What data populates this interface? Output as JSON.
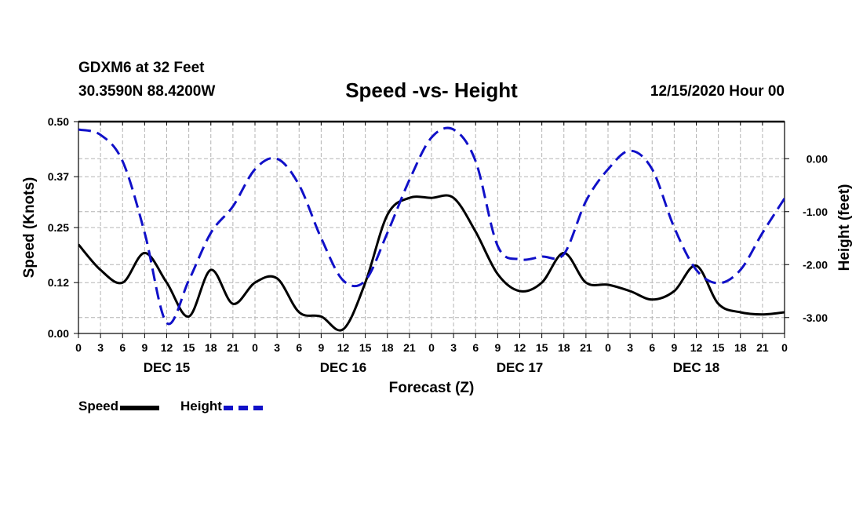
{
  "header": {
    "station": "GDXM6 at 32 Feet",
    "coordinates": "30.3590N 88.4200W",
    "title": "Speed -vs- Height",
    "date_hour": "12/15/2020 Hour 00"
  },
  "legend": {
    "speed_label": "Speed",
    "height_label": "Height"
  },
  "colors": {
    "speed": "#000000",
    "height": "#1010c8",
    "grid": "#b4b4b4"
  },
  "chart_data": {
    "type": "line",
    "title": "Speed -vs- Height",
    "xlabel": "Forecast (Z)",
    "ylabel": "Speed (Knots)",
    "y2label": "Height (feet)",
    "xlim": [
      0,
      96
    ],
    "ylim": [
      0,
      0.5
    ],
    "y2lim": [
      -3.3,
      0.7
    ],
    "x_ticks": [
      0,
      3,
      6,
      9,
      12,
      15,
      18,
      21,
      24,
      27,
      30,
      33,
      36,
      39,
      42,
      45,
      48,
      51,
      54,
      57,
      60,
      63,
      66,
      69,
      72,
      75,
      78,
      81,
      84,
      87,
      90,
      93,
      96
    ],
    "x_tick_labels": [
      "0",
      "3",
      "6",
      "9",
      "12",
      "15",
      "18",
      "21",
      "0",
      "3",
      "6",
      "9",
      "12",
      "15",
      "18",
      "21",
      "0",
      "3",
      "6",
      "9",
      "12",
      "15",
      "18",
      "21",
      "0",
      "3",
      "6",
      "9",
      "12",
      "15",
      "18",
      "21",
      "0"
    ],
    "day_labels": [
      {
        "x": 12,
        "label": "DEC 15"
      },
      {
        "x": 36,
        "label": "DEC 16"
      },
      {
        "x": 60,
        "label": "DEC 17"
      },
      {
        "x": 84,
        "label": "DEC 18"
      }
    ],
    "y_ticks": [
      0.0,
      0.12,
      0.25,
      0.37,
      0.5
    ],
    "y_tick_labels": [
      "0.00",
      "0.12",
      "0.25",
      "0.37",
      "0.50"
    ],
    "y2_ticks": [
      0.0,
      -1.0,
      -2.0,
      -3.0
    ],
    "y2_tick_labels": [
      "0.00",
      "-1.00",
      "-2.00",
      "-3.00"
    ],
    "grid": true,
    "legend_position": "bottom-left",
    "series": [
      {
        "name": "Speed",
        "axis": "left",
        "style": "solid",
        "x": [
          0,
          3,
          6,
          9,
          12,
          15,
          18,
          21,
          24,
          27,
          30,
          33,
          36,
          39,
          42,
          45,
          48,
          51,
          54,
          57,
          60,
          63,
          66,
          69,
          72,
          75,
          78,
          81,
          84,
          87,
          90,
          93,
          96
        ],
        "values": [
          0.21,
          0.15,
          0.12,
          0.19,
          0.12,
          0.04,
          0.15,
          0.07,
          0.12,
          0.13,
          0.05,
          0.04,
          0.01,
          0.12,
          0.28,
          0.32,
          0.32,
          0.32,
          0.24,
          0.14,
          0.1,
          0.12,
          0.19,
          0.12,
          0.115,
          0.1,
          0.08,
          0.1,
          0.16,
          0.07,
          0.05,
          0.045,
          0.05
        ]
      },
      {
        "name": "Height",
        "axis": "right",
        "style": "dashed",
        "x": [
          0,
          3,
          6,
          9,
          12,
          15,
          18,
          21,
          24,
          27,
          30,
          33,
          36,
          39,
          42,
          45,
          48,
          51,
          54,
          57,
          60,
          63,
          66,
          69,
          72,
          75,
          78,
          81,
          84,
          87,
          90,
          93,
          96
        ],
        "values": [
          0.55,
          0.45,
          -0.05,
          -1.4,
          -3.1,
          -2.3,
          -1.4,
          -0.9,
          -0.2,
          0.0,
          -0.5,
          -1.5,
          -2.3,
          -2.3,
          -1.4,
          -0.4,
          0.4,
          0.55,
          -0.05,
          -1.65,
          -1.9,
          -1.85,
          -1.8,
          -0.8,
          -0.2,
          0.15,
          -0.2,
          -1.3,
          -2.1,
          -2.35,
          -2.1,
          -1.4,
          -0.75
        ]
      }
    ]
  }
}
